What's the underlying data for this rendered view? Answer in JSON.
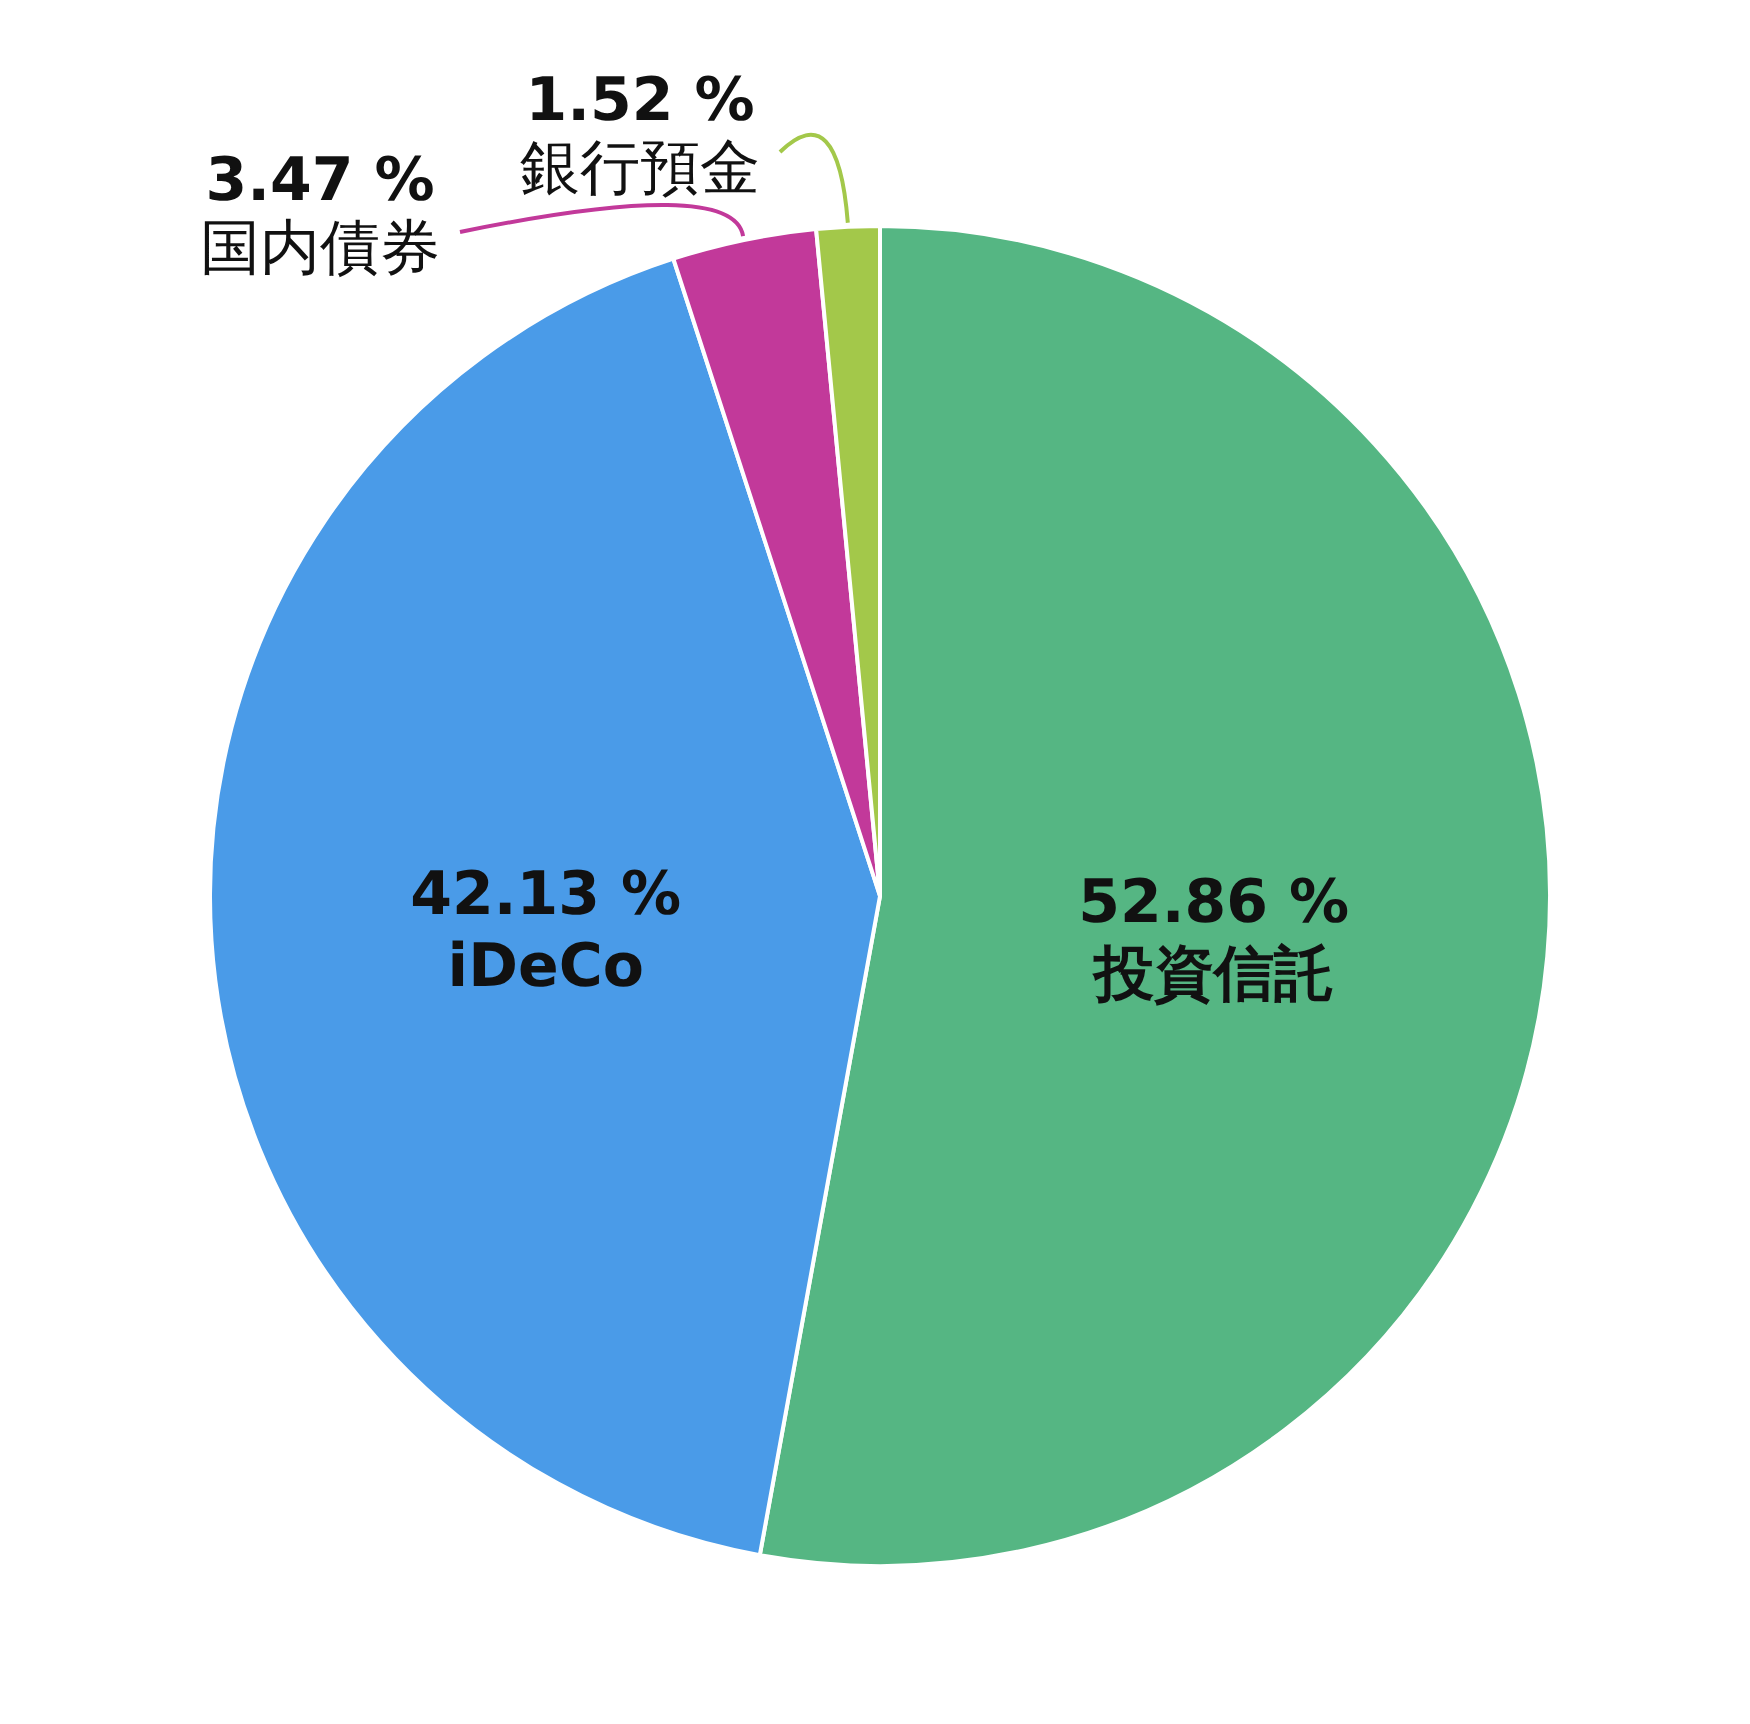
{
  "chart_data": {
    "type": "pie",
    "categories": [
      "投資信託",
      "iDeCo",
      "国内債券",
      "銀行預金"
    ],
    "values": [
      52.86,
      42.13,
      3.47,
      1.52
    ],
    "colors": [
      "#55b683",
      "#4a9be8",
      "#c2399a",
      "#a3c84a"
    ],
    "value_labels": [
      "52.86 %",
      "42.13 %",
      "3.47 %",
      "1.52 %"
    ],
    "legend": false
  }
}
